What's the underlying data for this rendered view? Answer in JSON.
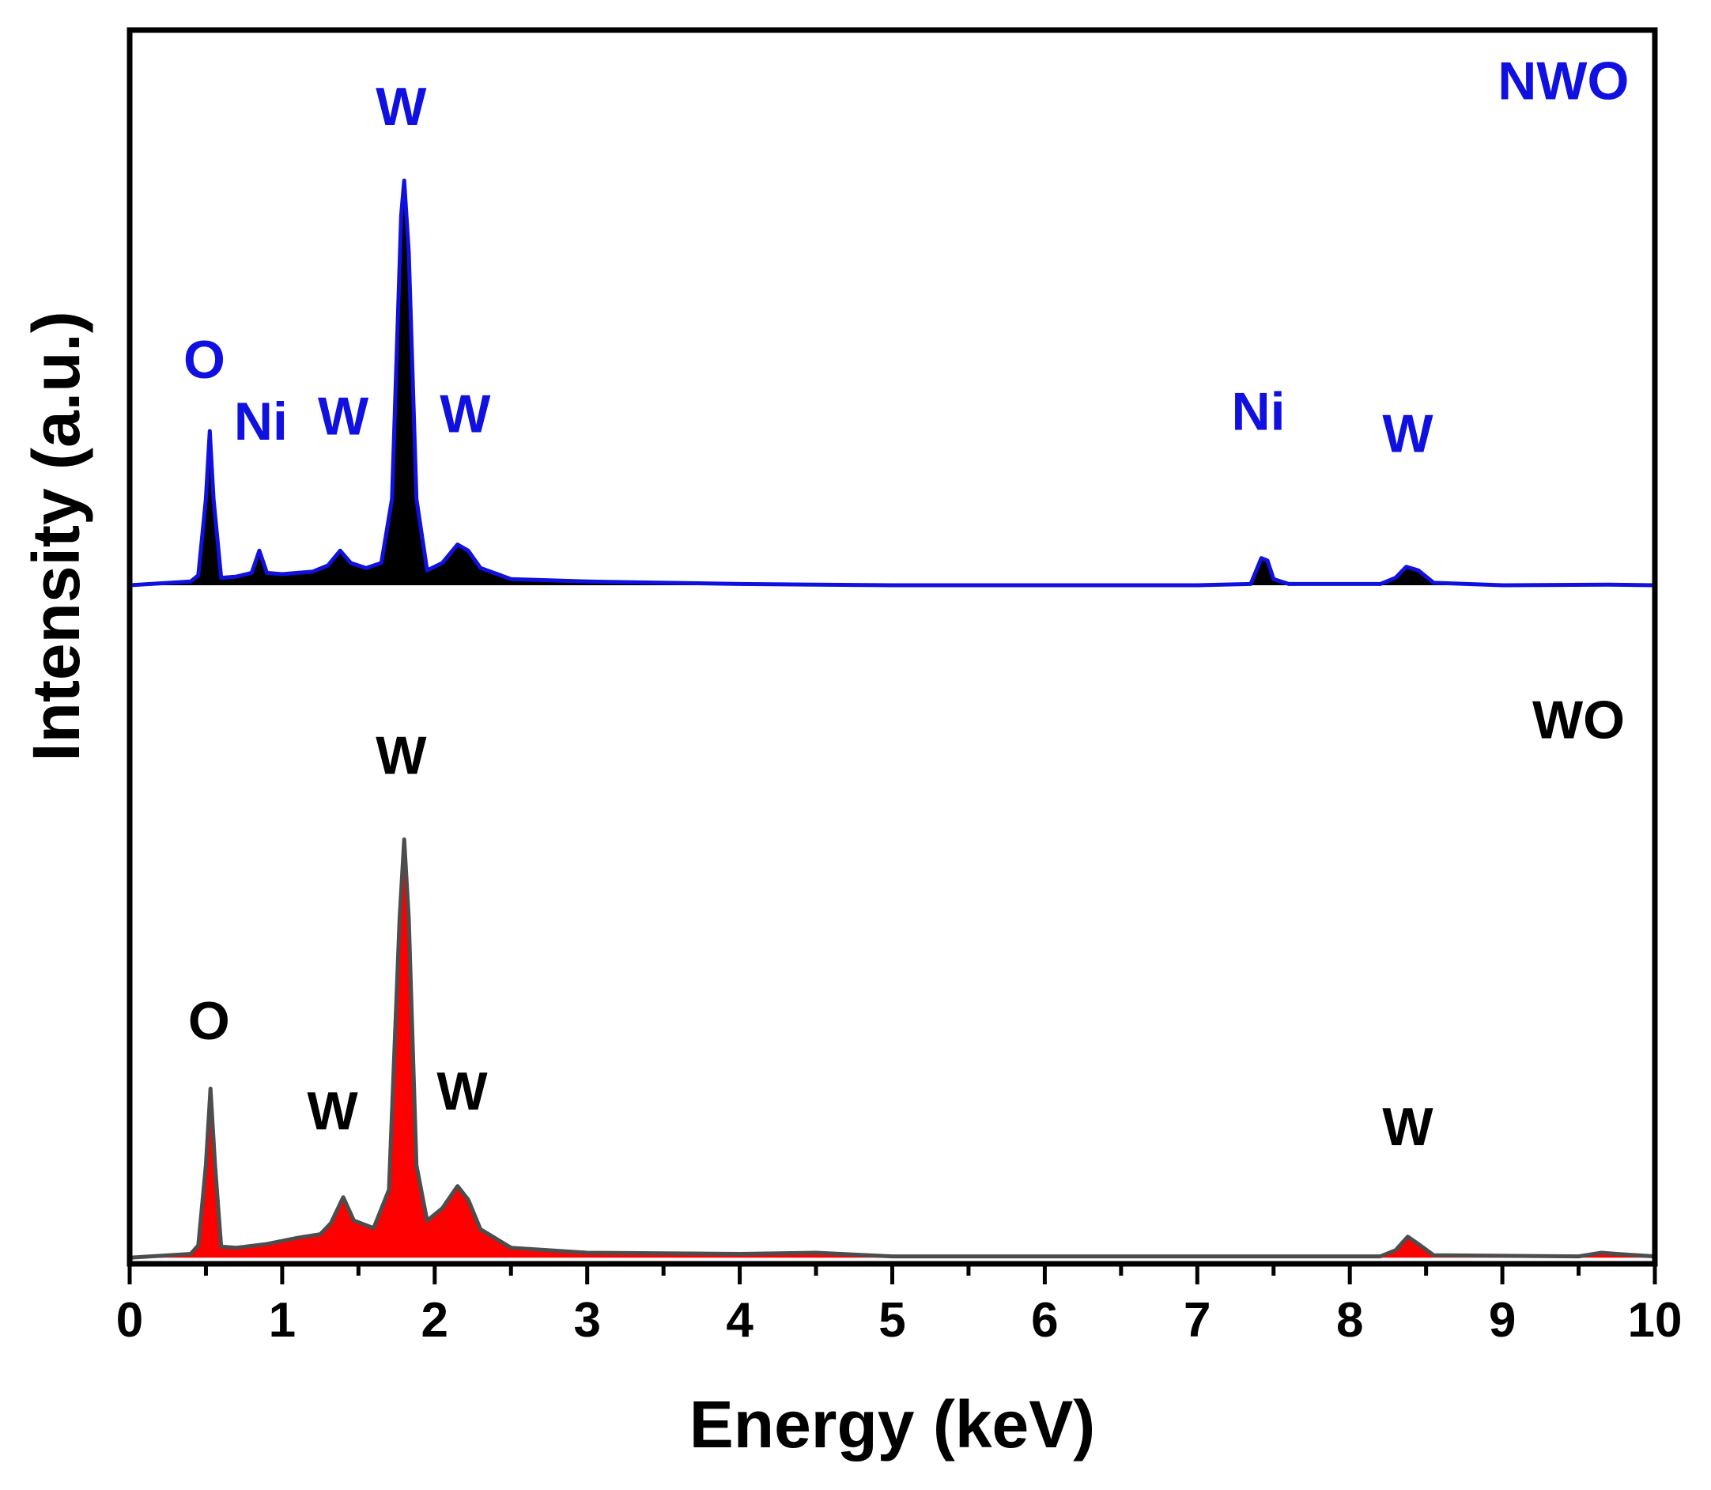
{
  "chart_data": {
    "type": "area",
    "title": "",
    "xlabel": "Energy (keV)",
    "ylabel": "Intensity (a.u.)",
    "xlim": [
      0,
      10
    ],
    "ylim": [
      0,
      100
    ],
    "xticks": [
      0,
      1,
      2,
      3,
      4,
      5,
      6,
      7,
      8,
      9,
      10
    ],
    "xtick_labels": [
      "0",
      "1",
      "2",
      "3",
      "4",
      "5",
      "6",
      "7",
      "8",
      "9",
      "10"
    ],
    "grid": false,
    "series": [
      {
        "name": "NWO",
        "label_color": "#1010e0",
        "line_color": "#1010e0",
        "fill_color": "#000000",
        "baseline": 55,
        "points": [
          [
            0.0,
            55.0
          ],
          [
            0.4,
            55.3
          ],
          [
            0.45,
            55.8
          ],
          [
            0.5,
            62
          ],
          [
            0.525,
            67.5
          ],
          [
            0.55,
            62
          ],
          [
            0.6,
            55.6
          ],
          [
            0.7,
            55.7
          ],
          [
            0.8,
            56
          ],
          [
            0.85,
            57.8
          ],
          [
            0.9,
            56
          ],
          [
            1.0,
            55.9
          ],
          [
            1.2,
            56.1
          ],
          [
            1.3,
            56.6
          ],
          [
            1.38,
            57.8
          ],
          [
            1.45,
            56.8
          ],
          [
            1.55,
            56.4
          ],
          [
            1.65,
            56.8
          ],
          [
            1.72,
            62
          ],
          [
            1.78,
            85
          ],
          [
            1.8,
            87.8
          ],
          [
            1.83,
            82
          ],
          [
            1.88,
            62
          ],
          [
            1.95,
            56.2
          ],
          [
            2.05,
            56.8
          ],
          [
            2.15,
            58.3
          ],
          [
            2.22,
            57.8
          ],
          [
            2.3,
            56.4
          ],
          [
            2.5,
            55.5
          ],
          [
            3.0,
            55.3
          ],
          [
            4.0,
            55.1
          ],
          [
            5.0,
            55.0
          ],
          [
            6.0,
            55.0
          ],
          [
            7.0,
            55.0
          ],
          [
            7.35,
            55.1
          ],
          [
            7.42,
            57.2
          ],
          [
            7.46,
            57.0
          ],
          [
            7.5,
            55.5
          ],
          [
            7.6,
            55.1
          ],
          [
            8.2,
            55.1
          ],
          [
            8.3,
            55.6
          ],
          [
            8.37,
            56.5
          ],
          [
            8.45,
            56.2
          ],
          [
            8.55,
            55.2
          ],
          [
            9.0,
            55.0
          ],
          [
            9.7,
            55.05
          ],
          [
            10.0,
            55.0
          ]
        ],
        "annotations": [
          {
            "text": "O",
            "x": 0.49,
            "y": 71.8
          },
          {
            "text": "Ni",
            "x": 0.86,
            "y": 66.8
          },
          {
            "text": "W",
            "x": 1.4,
            "y": 67.2
          },
          {
            "text": "W",
            "x": 1.78,
            "y": 92.3
          },
          {
            "text": "W",
            "x": 2.2,
            "y": 67.4
          },
          {
            "text": "Ni",
            "x": 7.4,
            "y": 67.6
          },
          {
            "text": "W",
            "x": 8.38,
            "y": 65.8
          }
        ],
        "legend_label": {
          "text": "NWO",
          "x": 9.4,
          "y": 94.4
        }
      },
      {
        "name": "WO",
        "label_color": "#000000",
        "line_color": "#4d4d4d",
        "fill_color": "#ff0000",
        "baseline": 0.5,
        "points": [
          [
            0.0,
            0.5
          ],
          [
            0.4,
            0.8
          ],
          [
            0.45,
            1.5
          ],
          [
            0.5,
            8
          ],
          [
            0.53,
            14.2
          ],
          [
            0.56,
            8
          ],
          [
            0.6,
            1.4
          ],
          [
            0.7,
            1.3
          ],
          [
            0.9,
            1.6
          ],
          [
            1.1,
            2.1
          ],
          [
            1.25,
            2.4
          ],
          [
            1.32,
            3.3
          ],
          [
            1.4,
            5.4
          ],
          [
            1.47,
            3.5
          ],
          [
            1.6,
            2.9
          ],
          [
            1.7,
            6
          ],
          [
            1.77,
            28
          ],
          [
            1.8,
            34.4
          ],
          [
            1.83,
            28
          ],
          [
            1.88,
            8
          ],
          [
            1.95,
            3.5
          ],
          [
            2.05,
            4.5
          ],
          [
            2.15,
            6.3
          ],
          [
            2.22,
            5.2
          ],
          [
            2.3,
            2.8
          ],
          [
            2.5,
            1.3
          ],
          [
            3.0,
            0.9
          ],
          [
            4.0,
            0.8
          ],
          [
            4.5,
            0.9
          ],
          [
            5.0,
            0.6
          ],
          [
            6.0,
            0.6
          ],
          [
            7.0,
            0.6
          ],
          [
            8.2,
            0.6
          ],
          [
            8.3,
            1.1
          ],
          [
            8.38,
            2.2
          ],
          [
            8.45,
            1.6
          ],
          [
            8.55,
            0.7
          ],
          [
            9.5,
            0.6
          ],
          [
            9.65,
            0.9
          ],
          [
            9.75,
            0.8
          ],
          [
            10.0,
            0.6
          ]
        ],
        "annotations": [
          {
            "text": "O",
            "x": 0.52,
            "y": 18.2
          },
          {
            "text": "W",
            "x": 1.33,
            "y": 10.9
          },
          {
            "text": "W",
            "x": 1.78,
            "y": 39.7
          },
          {
            "text": "W",
            "x": 2.18,
            "y": 12.5
          },
          {
            "text": "W",
            "x": 8.38,
            "y": 9.6
          }
        ],
        "legend_label": {
          "text": "WO",
          "x": 9.5,
          "y": 42.6
        }
      }
    ]
  }
}
